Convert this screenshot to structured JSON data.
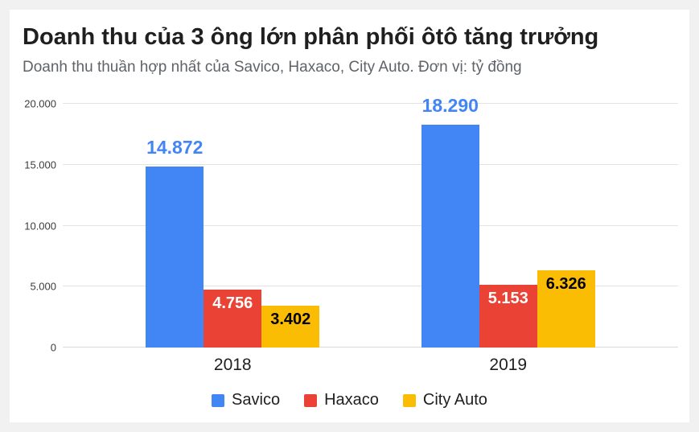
{
  "header": {
    "title": "Doanh thu của 3 ông lớn phân phối ôtô tăng trưởng",
    "subtitle": "Doanh thu thuần hợp nhất của Savico, Haxaco, City Auto. Đơn vị: tỷ đồng"
  },
  "chart_data": {
    "type": "bar",
    "title": "Doanh thu của 3 ông lớn phân phối ôtô tăng trưởng",
    "subtitle": "Doanh thu thuần hợp nhất của Savico, Haxaco, City Auto. Đơn vị: tỷ đồng",
    "unit": "tỷ đồng",
    "categories": [
      "2018",
      "2019"
    ],
    "series": [
      {
        "name": "Savico",
        "color": "#4285F4",
        "values": [
          14872,
          18290
        ],
        "value_labels": [
          "14.872",
          "18.290"
        ],
        "label_position": "above",
        "label_color": "#4285F4"
      },
      {
        "name": "Haxaco",
        "color": "#EA4335",
        "values": [
          4756,
          5153
        ],
        "value_labels": [
          "4.756",
          "5.153"
        ],
        "label_position": "inside",
        "label_color": "#FFFFFF"
      },
      {
        "name": "City Auto",
        "color": "#FBBC04",
        "values": [
          3402,
          6326
        ],
        "value_labels": [
          "3.402",
          "6.326"
        ],
        "label_position": "inside",
        "label_color": "#000000"
      }
    ],
    "y_ticks": [
      {
        "value": 0,
        "label": "0"
      },
      {
        "value": 5000,
        "label": "5.000"
      },
      {
        "value": 10000,
        "label": "10.000"
      },
      {
        "value": 15000,
        "label": "15.000"
      },
      {
        "value": 20000,
        "label": "20.000"
      }
    ],
    "ylim": [
      0,
      20000
    ],
    "grid": true,
    "legend_position": "bottom",
    "legend": [
      "Savico",
      "Haxaco",
      "City Auto"
    ]
  }
}
